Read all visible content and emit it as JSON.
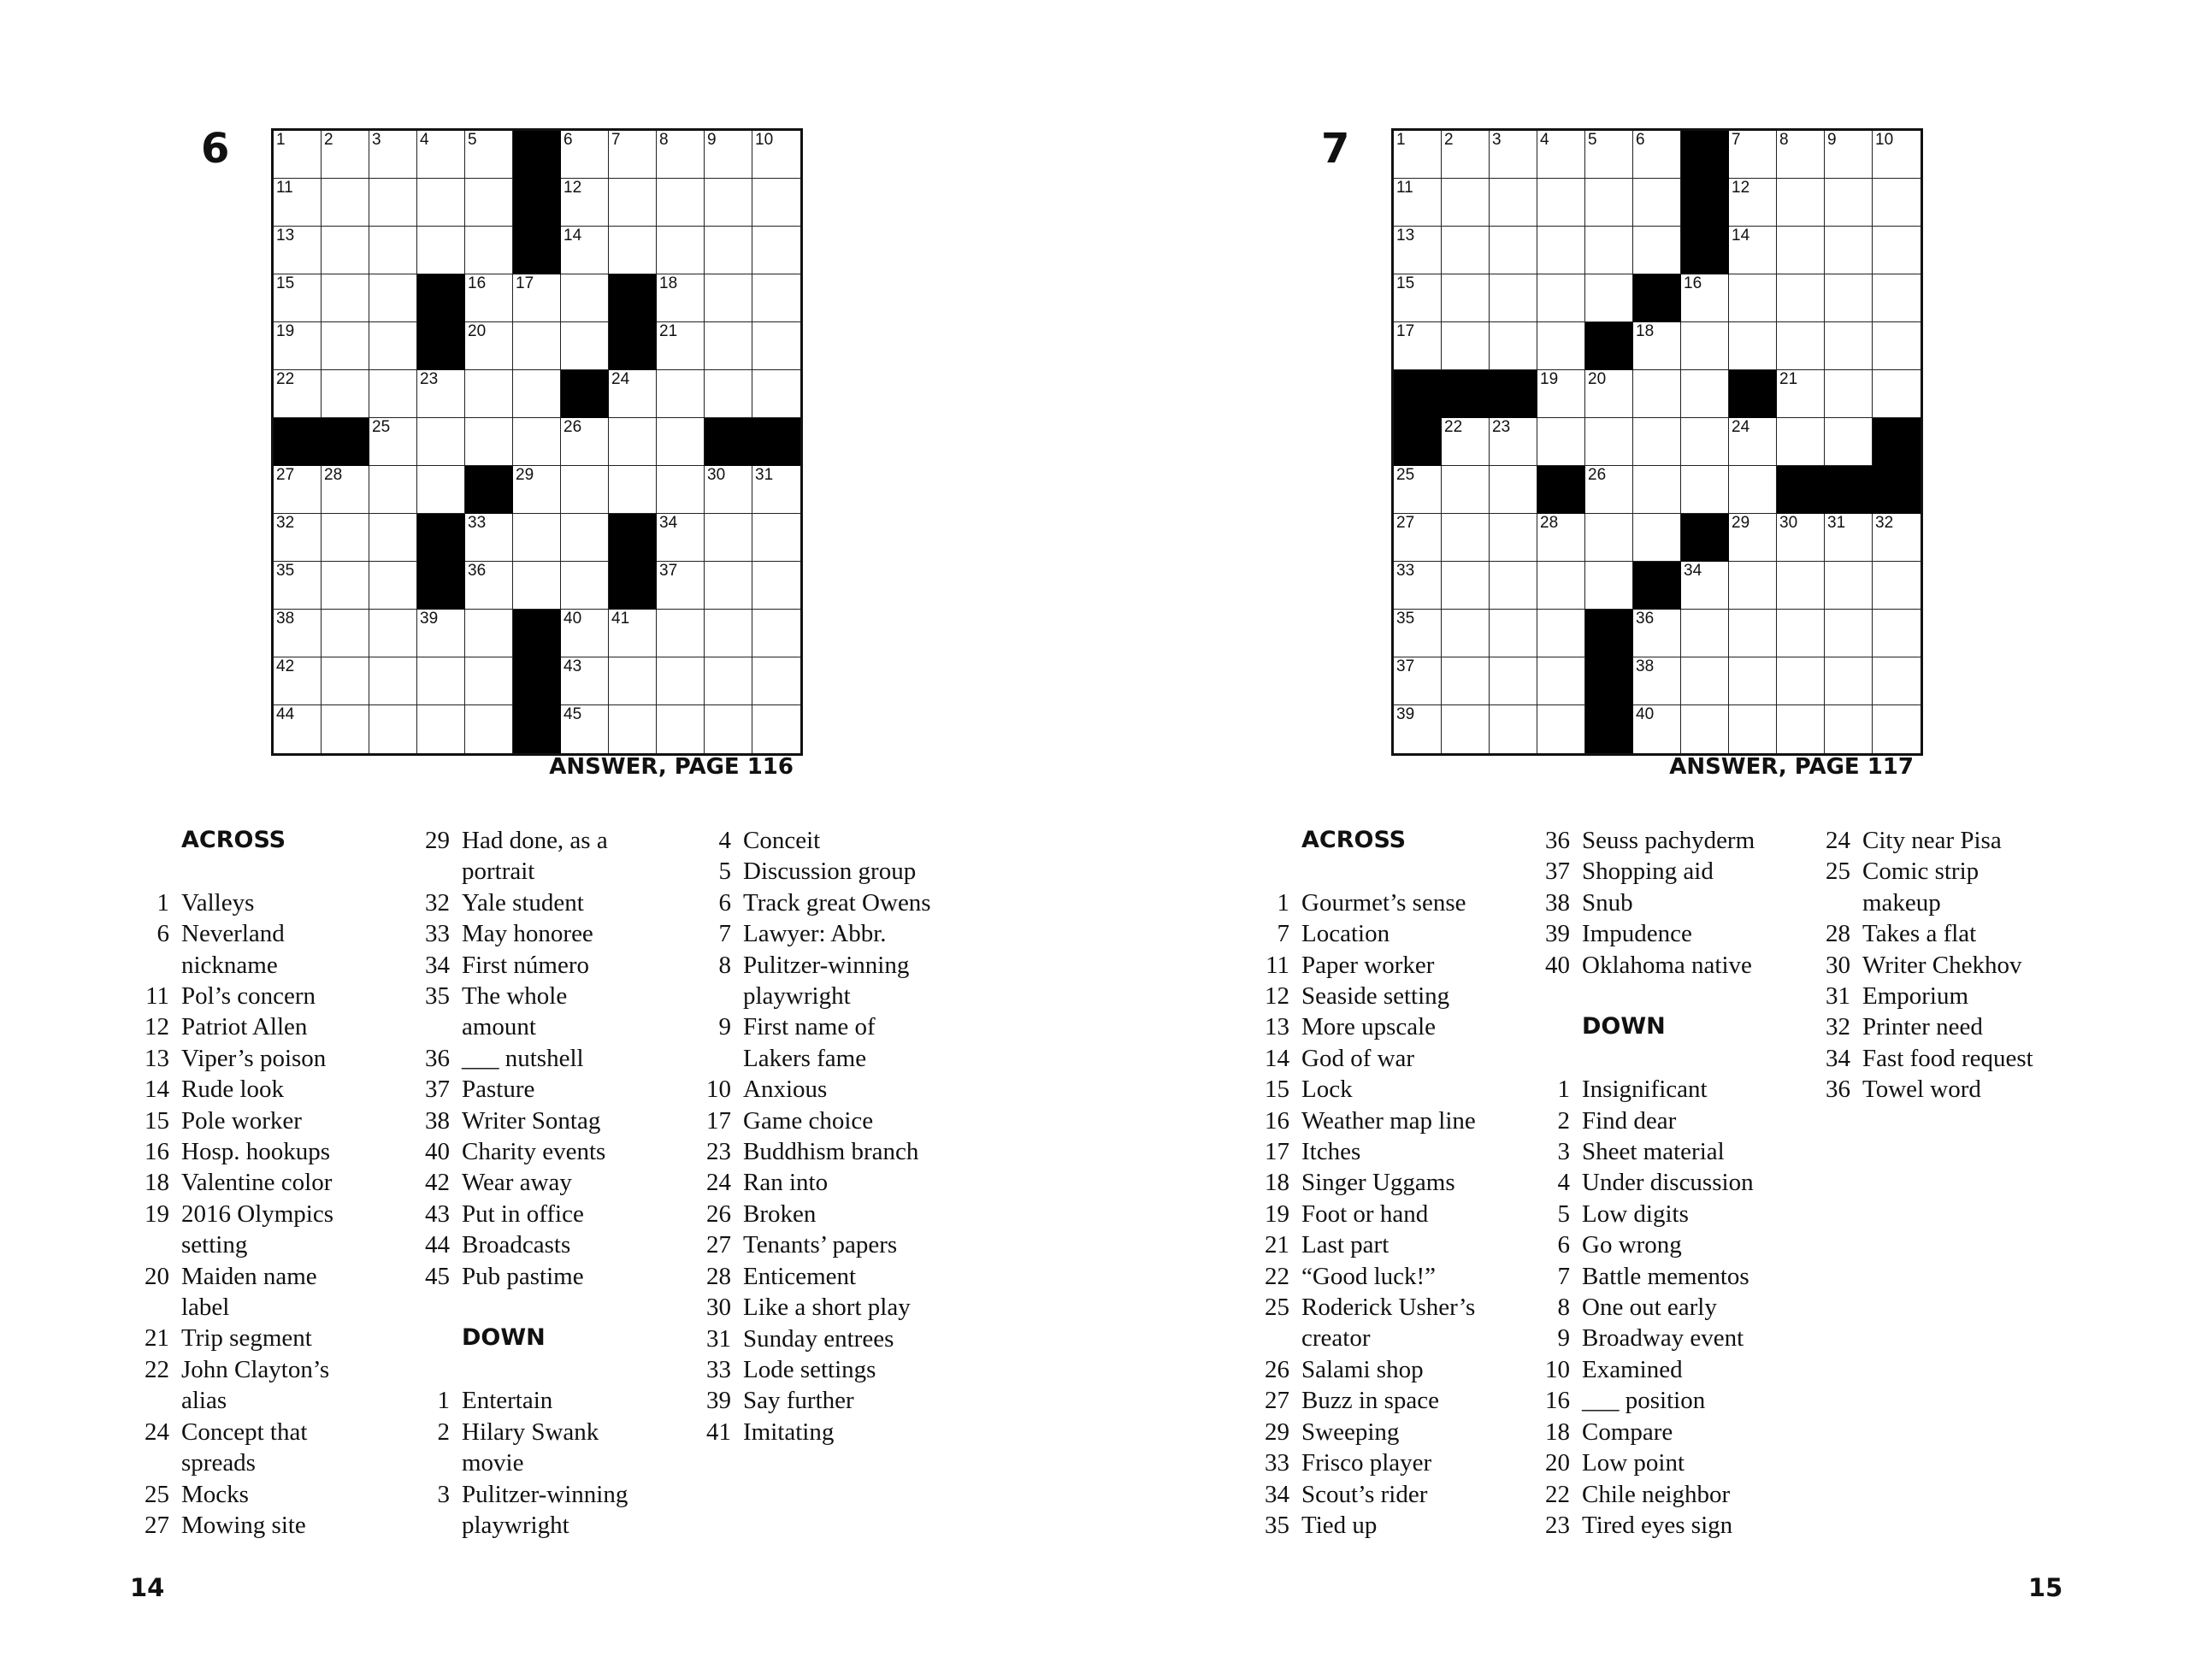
{
  "puzzles": [
    {
      "number": "6",
      "answer_ref": "ANSWER, PAGE 116",
      "grid": [
        [
          "1",
          "2",
          "3",
          "4",
          "5",
          "#",
          "6",
          "7",
          "8",
          "9",
          "10"
        ],
        [
          "11",
          "",
          "",
          "",
          "",
          "#",
          "12",
          "",
          "",
          "",
          ""
        ],
        [
          "13",
          "",
          "",
          "",
          "",
          "#",
          "14",
          "",
          "",
          "",
          ""
        ],
        [
          "15",
          "",
          "",
          "#",
          "16",
          "17",
          "",
          "#",
          "18",
          "",
          ""
        ],
        [
          "19",
          "",
          "",
          "#",
          "20",
          "",
          "",
          "#",
          "21",
          "",
          ""
        ],
        [
          "22",
          "",
          "",
          "23",
          "",
          "",
          "#",
          "24",
          "",
          "",
          ""
        ],
        [
          "#",
          "#",
          "25",
          "",
          "",
          "",
          "26",
          "",
          "",
          "#",
          "#"
        ],
        [
          "27",
          "28",
          "",
          "",
          "#",
          "29",
          "",
          "",
          "",
          "30",
          "31"
        ],
        [
          "32",
          "",
          "",
          "#",
          "33",
          "",
          "",
          "#",
          "34",
          "",
          ""
        ],
        [
          "35",
          "",
          "",
          "#",
          "36",
          "",
          "",
          "#",
          "37",
          "",
          ""
        ],
        [
          "38",
          "",
          "",
          "39",
          "",
          "#",
          "40",
          "41",
          "",
          "",
          ""
        ],
        [
          "42",
          "",
          "",
          "",
          "",
          "#",
          "43",
          "",
          "",
          "",
          ""
        ],
        [
          "44",
          "",
          "",
          "",
          "",
          "#",
          "45",
          "",
          "",
          "",
          ""
        ]
      ],
      "clue_columns": [
        [
          {
            "heading": "ACROSS"
          },
          {
            "n": "1",
            "t": "Valleys"
          },
          {
            "n": "6",
            "t": "Neverland\nnickname"
          },
          {
            "n": "11",
            "t": "Pol’s concern"
          },
          {
            "n": "12",
            "t": "Patriot Allen"
          },
          {
            "n": "13",
            "t": "Viper’s poison"
          },
          {
            "n": "14",
            "t": "Rude look"
          },
          {
            "n": "15",
            "t": "Pole worker"
          },
          {
            "n": "16",
            "t": "Hosp. hookups"
          },
          {
            "n": "18",
            "t": "Valentine color"
          },
          {
            "n": "19",
            "t": "2016 Olympics\nsetting"
          },
          {
            "n": "20",
            "t": "Maiden name\nlabel"
          },
          {
            "n": "21",
            "t": "Trip segment"
          },
          {
            "n": "22",
            "t": "John Clayton’s\nalias"
          },
          {
            "n": "24",
            "t": "Concept that\nspreads"
          },
          {
            "n": "25",
            "t": "Mocks"
          },
          {
            "n": "27",
            "t": "Mowing site"
          }
        ],
        [
          {
            "n": "29",
            "t": "Had done, as a\nportrait"
          },
          {
            "n": "32",
            "t": "Yale student"
          },
          {
            "n": "33",
            "t": "May honoree"
          },
          {
            "n": "34",
            "t": "First número"
          },
          {
            "n": "35",
            "t": "The whole\namount"
          },
          {
            "n": "36",
            "t": "___ nutshell"
          },
          {
            "n": "37",
            "t": "Pasture"
          },
          {
            "n": "38",
            "t": "Writer Sontag"
          },
          {
            "n": "40",
            "t": "Charity events"
          },
          {
            "n": "42",
            "t": "Wear away"
          },
          {
            "n": "43",
            "t": "Put in office"
          },
          {
            "n": "44",
            "t": "Broadcasts"
          },
          {
            "n": "45",
            "t": "Pub pastime"
          },
          {
            "heading": "DOWN"
          },
          {
            "n": "1",
            "t": "Entertain"
          },
          {
            "n": "2",
            "t": "Hilary Swank\nmovie"
          },
          {
            "n": "3",
            "t": "Pulitzer-winning\nplaywright"
          }
        ],
        [
          {
            "n": "4",
            "t": "Conceit"
          },
          {
            "n": "5",
            "t": "Discussion group"
          },
          {
            "n": "6",
            "t": "Track great Owens"
          },
          {
            "n": "7",
            "t": "Lawyer: Abbr."
          },
          {
            "n": "8",
            "t": "Pulitzer-winning\nplaywright"
          },
          {
            "n": "9",
            "t": "First name of\nLakers fame"
          },
          {
            "n": "10",
            "t": "Anxious"
          },
          {
            "n": "17",
            "t": "Game choice"
          },
          {
            "n": "23",
            "t": "Buddhism branch"
          },
          {
            "n": "24",
            "t": "Ran into"
          },
          {
            "n": "26",
            "t": "Broken"
          },
          {
            "n": "27",
            "t": "Tenants’ papers"
          },
          {
            "n": "28",
            "t": "Enticement"
          },
          {
            "n": "30",
            "t": "Like a short play"
          },
          {
            "n": "31",
            "t": "Sunday entrees"
          },
          {
            "n": "33",
            "t": "Lode settings"
          },
          {
            "n": "39",
            "t": "Say further"
          },
          {
            "n": "41",
            "t": "Imitating"
          }
        ]
      ]
    },
    {
      "number": "7",
      "answer_ref": "ANSWER, PAGE 117",
      "grid": [
        [
          "1",
          "2",
          "3",
          "4",
          "5",
          "6",
          "#",
          "7",
          "8",
          "9",
          "10"
        ],
        [
          "11",
          "",
          "",
          "",
          "",
          "",
          "#",
          "12",
          "",
          "",
          ""
        ],
        [
          "13",
          "",
          "",
          "",
          "",
          "",
          "#",
          "14",
          "",
          "",
          ""
        ],
        [
          "15",
          "",
          "",
          "",
          "",
          "#",
          "16",
          "",
          "",
          "",
          ""
        ],
        [
          "17",
          "",
          "",
          "",
          "#",
          "18",
          "",
          "",
          "",
          "",
          ""
        ],
        [
          "#",
          "#",
          "#",
          "19",
          "20",
          "",
          "",
          "#",
          "21",
          "",
          ""
        ],
        [
          "#",
          "22",
          "23",
          "",
          "",
          "",
          "",
          "24",
          "",
          "",
          "#"
        ],
        [
          "25",
          "",
          "",
          "#",
          "26",
          "",
          "",
          "",
          "#",
          "#",
          "#"
        ],
        [
          "27",
          "",
          "",
          "28",
          "",
          "",
          "#",
          "29",
          "30",
          "31",
          "32"
        ],
        [
          "33",
          "",
          "",
          "",
          "",
          "#",
          "34",
          "",
          "",
          "",
          ""
        ],
        [
          "35",
          "",
          "",
          "",
          "#",
          "36",
          "",
          "",
          "",
          "",
          ""
        ],
        [
          "37",
          "",
          "",
          "",
          "#",
          "38",
          "",
          "",
          "",
          "",
          ""
        ],
        [
          "39",
          "",
          "",
          "",
          "#",
          "40",
          "",
          "",
          "",
          "",
          ""
        ]
      ],
      "clue_columns": [
        [
          {
            "heading": "ACROSS"
          },
          {
            "n": "1",
            "t": "Gourmet’s sense"
          },
          {
            "n": "7",
            "t": "Location"
          },
          {
            "n": "11",
            "t": "Paper worker"
          },
          {
            "n": "12",
            "t": "Seaside setting"
          },
          {
            "n": "13",
            "t": "More upscale"
          },
          {
            "n": "14",
            "t": "God of war"
          },
          {
            "n": "15",
            "t": "Lock"
          },
          {
            "n": "16",
            "t": "Weather map line"
          },
          {
            "n": "17",
            "t": "Itches"
          },
          {
            "n": "18",
            "t": "Singer Uggams"
          },
          {
            "n": "19",
            "t": "Foot or hand"
          },
          {
            "n": "21",
            "t": "Last part"
          },
          {
            "n": "22",
            "t": "“Good luck!”"
          },
          {
            "n": "25",
            "t": "Roderick Usher’s\ncreator"
          },
          {
            "n": "26",
            "t": "Salami shop"
          },
          {
            "n": "27",
            "t": "Buzz in space"
          },
          {
            "n": "29",
            "t": "Sweeping"
          },
          {
            "n": "33",
            "t": "Frisco player"
          },
          {
            "n": "34",
            "t": "Scout’s rider"
          },
          {
            "n": "35",
            "t": "Tied up"
          }
        ],
        [
          {
            "n": "36",
            "t": "Seuss pachyderm"
          },
          {
            "n": "37",
            "t": "Shopping aid"
          },
          {
            "n": "38",
            "t": "Snub"
          },
          {
            "n": "39",
            "t": "Impudence"
          },
          {
            "n": "40",
            "t": "Oklahoma native"
          },
          {
            "heading": "DOWN"
          },
          {
            "n": "1",
            "t": "Insignificant"
          },
          {
            "n": "2",
            "t": "Find dear"
          },
          {
            "n": "3",
            "t": "Sheet material"
          },
          {
            "n": "4",
            "t": "Under discussion"
          },
          {
            "n": "5",
            "t": "Low digits"
          },
          {
            "n": "6",
            "t": "Go wrong"
          },
          {
            "n": "7",
            "t": "Battle mementos"
          },
          {
            "n": "8",
            "t": "One out early"
          },
          {
            "n": "9",
            "t": "Broadway event"
          },
          {
            "n": "10",
            "t": "Examined"
          },
          {
            "n": "16",
            "t": "___ position"
          },
          {
            "n": "18",
            "t": "Compare"
          },
          {
            "n": "20",
            "t": "Low point"
          },
          {
            "n": "22",
            "t": "Chile neighbor"
          },
          {
            "n": "23",
            "t": "Tired eyes sign"
          }
        ],
        [
          {
            "n": "24",
            "t": "City near Pisa"
          },
          {
            "n": "25",
            "t": "Comic strip\nmakeup"
          },
          {
            "n": "28",
            "t": "Takes a flat"
          },
          {
            "n": "30",
            "t": "Writer Chekhov"
          },
          {
            "n": "31",
            "t": "Emporium"
          },
          {
            "n": "32",
            "t": "Printer need"
          },
          {
            "n": "34",
            "t": "Fast food request"
          },
          {
            "n": "36",
            "t": "Towel word"
          }
        ]
      ]
    }
  ],
  "page_numbers": {
    "left": "14",
    "right": "15"
  }
}
